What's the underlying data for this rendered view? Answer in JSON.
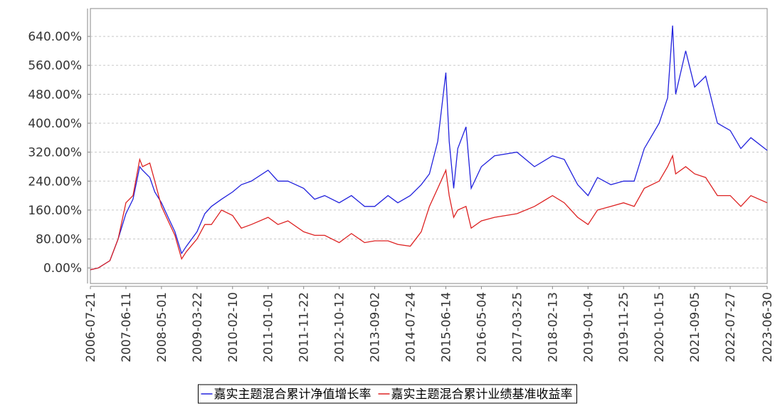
{
  "chart_data": {
    "type": "line",
    "x": [
      "2006-07-21",
      "2006-10-01",
      "2007-01-15",
      "2007-04-01",
      "2007-06-11",
      "2007-08-15",
      "2007-10-15",
      "2007-11-10",
      "2008-01-15",
      "2008-03-01",
      "2008-05-01",
      "2008-07-01",
      "2008-09-01",
      "2008-11-01",
      "2008-12-15",
      "2009-03-22",
      "2009-06-01",
      "2009-08-01",
      "2009-11-01",
      "2010-02-10",
      "2010-05-01",
      "2010-08-01",
      "2011-01-01",
      "2011-04-01",
      "2011-07-01",
      "2011-11-22",
      "2012-03-01",
      "2012-06-01",
      "2012-10-12",
      "2013-02-01",
      "2013-06-01",
      "2013-09-02",
      "2014-01-01",
      "2014-04-01",
      "2014-07-24",
      "2014-11-01",
      "2015-01-15",
      "2015-04-01",
      "2015-06-14",
      "2015-07-15",
      "2015-08-25",
      "2015-10-01",
      "2015-12-15",
      "2016-02-01",
      "2016-05-04",
      "2016-09-01",
      "2017-03-25",
      "2017-09-01",
      "2018-02-13",
      "2018-06-01",
      "2018-10-01",
      "2019-01-04",
      "2019-04-01",
      "2019-08-01",
      "2019-11-25",
      "2020-03-01",
      "2020-06-01",
      "2020-10-15",
      "2021-01-01",
      "2021-02-15",
      "2021-03-15",
      "2021-06-15",
      "2021-09-05",
      "2021-12-15",
      "2022-04-01",
      "2022-07-27",
      "2022-11-01",
      "2023-02-01",
      "2023-06-30"
    ],
    "series": [
      {
        "name": "嘉实主题混合累计净值增长率",
        "color": "#2222dd",
        "values": [
          -5,
          0,
          20,
          80,
          150,
          190,
          280,
          270,
          250,
          210,
          180,
          140,
          100,
          40,
          60,
          100,
          150,
          170,
          190,
          210,
          230,
          240,
          270,
          240,
          240,
          220,
          190,
          200,
          180,
          200,
          170,
          170,
          200,
          180,
          200,
          230,
          260,
          350,
          540,
          350,
          220,
          330,
          390,
          220,
          280,
          310,
          320,
          280,
          310,
          300,
          230,
          200,
          250,
          230,
          240,
          240,
          330,
          400,
          470,
          670,
          480,
          600,
          500,
          530,
          400,
          380,
          330,
          360,
          325
        ]
      },
      {
        "name": "嘉实主题混合累计业绩基准收益率",
        "color": "#dd2222",
        "values": [
          -5,
          0,
          20,
          80,
          180,
          200,
          300,
          280,
          290,
          240,
          170,
          130,
          90,
          25,
          45,
          80,
          120,
          120,
          160,
          145,
          110,
          120,
          140,
          120,
          130,
          100,
          90,
          90,
          70,
          95,
          70,
          75,
          75,
          65,
          60,
          100,
          170,
          220,
          270,
          200,
          140,
          160,
          170,
          110,
          130,
          140,
          150,
          170,
          200,
          180,
          140,
          120,
          160,
          170,
          180,
          170,
          220,
          240,
          280,
          310,
          260,
          280,
          260,
          250,
          200,
          200,
          170,
          200,
          180
        ]
      }
    ],
    "xlim": [
      "2006-07-21",
      "2023-06-30"
    ],
    "xticks": [
      "2006-07-21",
      "2007-06-11",
      "2008-05-01",
      "2009-03-22",
      "2010-02-10",
      "2011-01-01",
      "2011-11-22",
      "2012-10-12",
      "2013-09-02",
      "2014-07-24",
      "2015-06-14",
      "2016-05-04",
      "2017-03-25",
      "2018-02-13",
      "2019-01-04",
      "2019-11-25",
      "2020-10-15",
      "2021-09-05",
      "2022-07-27",
      "2023-06-30"
    ],
    "ylim": [
      -43,
      717
    ],
    "yticks": [
      {
        "value": 0,
        "label": "0.00%"
      },
      {
        "value": 80,
        "label": "80.00%"
      },
      {
        "value": 160,
        "label": "160.00%"
      },
      {
        "value": 240,
        "label": "240.00%"
      },
      {
        "value": 320,
        "label": "320.00%"
      },
      {
        "value": 400,
        "label": "400.00%"
      },
      {
        "value": 480,
        "label": "480.00%"
      },
      {
        "value": 560,
        "label": "560.00%"
      },
      {
        "value": 640,
        "label": "640.00%"
      }
    ],
    "grid": true
  }
}
